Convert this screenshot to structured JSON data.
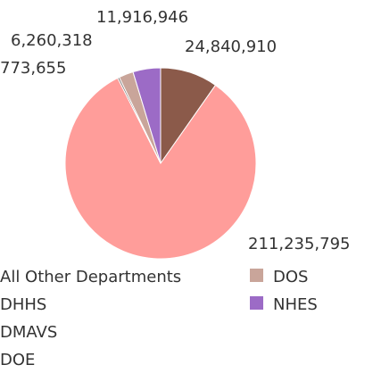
{
  "chart_data": {
    "type": "pie",
    "slices": [
      {
        "name": "All Other Departments",
        "value": 24840910,
        "label": "24,840,910",
        "color": "#8B5A4A"
      },
      {
        "name": "DHHS",
        "value": 211235795,
        "label": "211,235,795",
        "color": "#FF9D9A"
      },
      {
        "name": "DMAVS",
        "value": 773655,
        "label": "773,655",
        "color": "#79706E"
      },
      {
        "name": "DOE",
        "value": 6260318,
        "label": "6,260,318",
        "color": "#C9A59A"
      },
      {
        "name": "DOS",
        "value": 0,
        "label": "",
        "color": "#C9A59A"
      },
      {
        "name": "NHES",
        "value": 11916946,
        "label": "11,916,946",
        "color": "#9C6BC6"
      }
    ],
    "legend": {
      "placement": "bottom",
      "entries": [
        {
          "name": "All Other Departments",
          "color": ""
        },
        {
          "name": "DHHS",
          "color": ""
        },
        {
          "name": "DMAVS",
          "color": ""
        },
        {
          "name": "DOE",
          "color": ""
        },
        {
          "name": "DOS",
          "color": "#C9A59A"
        },
        {
          "name": "NHES",
          "color": "#9C6BC6"
        }
      ]
    }
  }
}
